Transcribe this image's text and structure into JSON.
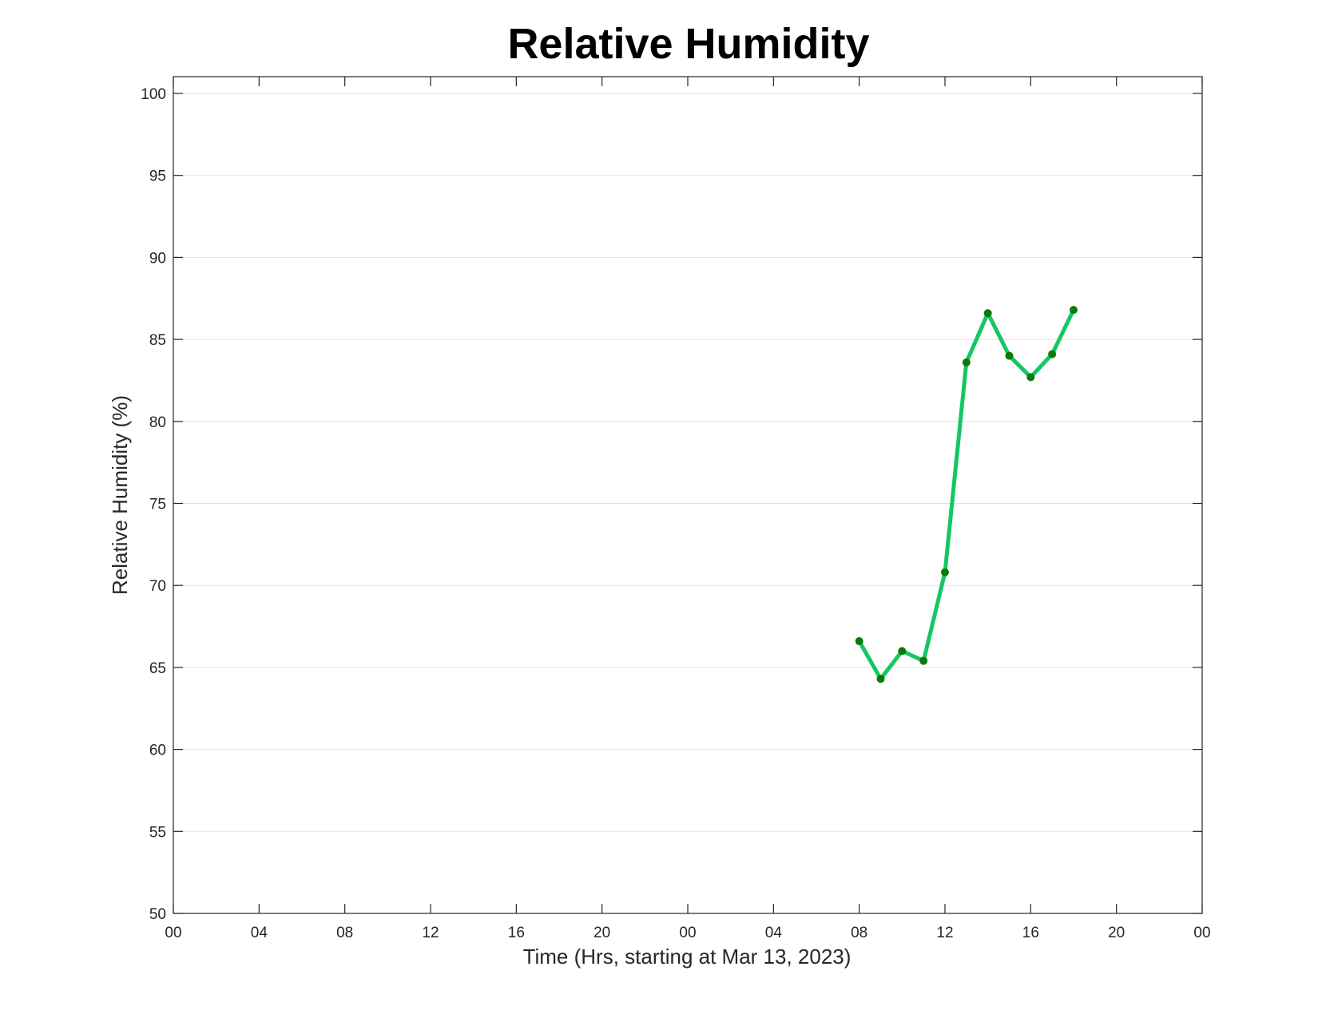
{
  "chart_data": {
    "type": "line",
    "title": "Relative Humidity",
    "xlabel": "Time (Hrs, starting at Mar 13, 2023)",
    "ylabel": "Relative Humidity (%)",
    "x_unit": "hours",
    "xlim": [
      0,
      48
    ],
    "ylim": [
      50,
      100
    ],
    "x_ticks": [
      0,
      4,
      8,
      12,
      16,
      20,
      24,
      28,
      32,
      36,
      40,
      44,
      48
    ],
    "x_tick_labels": [
      "00",
      "04",
      "08",
      "12",
      "16",
      "20",
      "00",
      "04",
      "08",
      "12",
      "16",
      "20",
      "00"
    ],
    "y_ticks": [
      50,
      55,
      60,
      65,
      70,
      75,
      80,
      85,
      90,
      95,
      100
    ],
    "y_tick_labels": [
      "50",
      "55",
      "60",
      "65",
      "70",
      "75",
      "80",
      "85",
      "90",
      "95",
      "100"
    ],
    "grid": "horizontal",
    "series": [
      {
        "line_color": "#14c764",
        "marker_color": "#0a7a0a",
        "x": [
          32,
          33,
          34,
          35,
          36,
          37,
          38,
          39,
          40,
          41,
          42
        ],
        "values": [
          66.6,
          64.3,
          66.0,
          65.4,
          70.8,
          83.6,
          86.6,
          84.0,
          82.7,
          84.1,
          86.8
        ]
      }
    ]
  }
}
